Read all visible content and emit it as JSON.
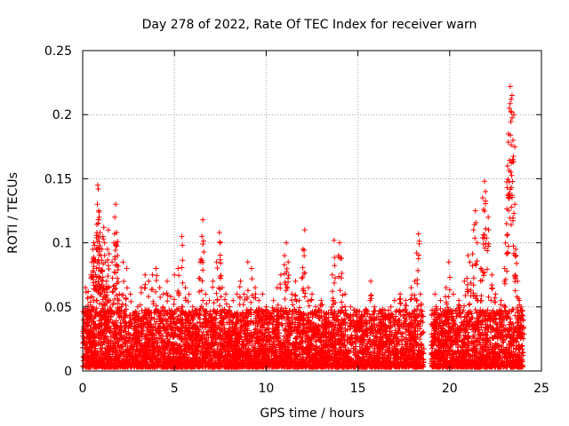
{
  "chart_data": {
    "type": "scatter",
    "title": "Day 278 of 2022, Rate Of TEC Index for receiver warn",
    "xlabel": "GPS time / hours",
    "ylabel": "ROTI / TECUs",
    "xlim": [
      0,
      25
    ],
    "ylim": [
      0,
      0.25
    ],
    "xticks": [
      "0",
      "5",
      "10",
      "15",
      "20",
      "25"
    ],
    "yticks": [
      "0",
      "0.05",
      "0.1",
      "0.15",
      "0.2",
      "0.25"
    ],
    "grid": true,
    "marker": "+",
    "color": "#ff0000",
    "data_gap_hours": [
      18.6,
      19.0
    ],
    "series": [
      {
        "values": [
          [
            0.15,
            0.065
          ],
          [
            0.3,
            0.062
          ],
          [
            0.35,
            0.048
          ],
          [
            0.45,
            0.058
          ],
          [
            0.5,
            0.085
          ],
          [
            0.55,
            0.095
          ],
          [
            0.6,
            0.1
          ],
          [
            0.65,
            0.098
          ],
          [
            0.7,
            0.075
          ],
          [
            0.75,
            0.08
          ],
          [
            0.8,
            0.13
          ],
          [
            0.82,
            0.145
          ],
          [
            0.85,
            0.142
          ],
          [
            0.88,
            0.125
          ],
          [
            0.9,
            0.12
          ],
          [
            0.95,
            0.108
          ],
          [
            1.0,
            0.09
          ],
          [
            1.05,
            0.095
          ],
          [
            1.1,
            0.105
          ],
          [
            1.15,
            0.112
          ],
          [
            1.2,
            0.1
          ],
          [
            1.25,
            0.085
          ],
          [
            1.3,
            0.07
          ],
          [
            1.35,
            0.095
          ],
          [
            1.4,
            0.11
          ],
          [
            1.45,
            0.065
          ],
          [
            1.5,
            0.055
          ],
          [
            1.6,
            0.085
          ],
          [
            1.7,
            0.1
          ],
          [
            1.75,
            0.12
          ],
          [
            1.8,
            0.13
          ],
          [
            1.85,
            0.108
          ],
          [
            1.9,
            0.09
          ],
          [
            2.0,
            0.06
          ],
          [
            2.1,
            0.05
          ],
          [
            2.2,
            0.085
          ],
          [
            2.4,
            0.08
          ],
          [
            2.6,
            0.06
          ],
          [
            2.8,
            0.045
          ],
          [
            3.0,
            0.05
          ],
          [
            3.2,
            0.065
          ],
          [
            3.4,
            0.075
          ],
          [
            3.6,
            0.07
          ],
          [
            3.8,
            0.075
          ],
          [
            4.0,
            0.08
          ],
          [
            4.2,
            0.065
          ],
          [
            4.4,
            0.06
          ],
          [
            4.6,
            0.07
          ],
          [
            4.8,
            0.058
          ],
          [
            5.0,
            0.075
          ],
          [
            5.2,
            0.08
          ],
          [
            5.4,
            0.105
          ],
          [
            5.6,
            0.065
          ],
          [
            5.8,
            0.06
          ],
          [
            6.0,
            0.05
          ],
          [
            6.2,
            0.045
          ],
          [
            6.4,
            0.085
          ],
          [
            6.5,
            0.105
          ],
          [
            6.55,
            0.118
          ],
          [
            6.7,
            0.06
          ],
          [
            6.9,
            0.055
          ],
          [
            7.1,
            0.07
          ],
          [
            7.3,
            0.085
          ],
          [
            7.45,
            0.108
          ],
          [
            7.5,
            0.1
          ],
          [
            7.6,
            0.065
          ],
          [
            7.8,
            0.06
          ],
          [
            8.0,
            0.05
          ],
          [
            8.2,
            0.055
          ],
          [
            8.4,
            0.06
          ],
          [
            8.6,
            0.07
          ],
          [
            8.8,
            0.06
          ],
          [
            9.0,
            0.085
          ],
          [
            9.2,
            0.08
          ],
          [
            9.4,
            0.065
          ],
          [
            9.6,
            0.055
          ],
          [
            9.8,
            0.06
          ],
          [
            10.0,
            0.05
          ],
          [
            10.2,
            0.045
          ],
          [
            10.4,
            0.055
          ],
          [
            10.6,
            0.065
          ],
          [
            10.8,
            0.075
          ],
          [
            11.0,
            0.09
          ],
          [
            11.1,
            0.1
          ],
          [
            11.2,
            0.085
          ],
          [
            11.4,
            0.06
          ],
          [
            11.6,
            0.07
          ],
          [
            11.8,
            0.055
          ],
          [
            12.0,
            0.095
          ],
          [
            12.1,
            0.11
          ],
          [
            12.3,
            0.065
          ],
          [
            12.5,
            0.06
          ],
          [
            12.7,
            0.05
          ],
          [
            13.0,
            0.055
          ],
          [
            13.3,
            0.045
          ],
          [
            13.6,
            0.075
          ],
          [
            13.7,
            0.102
          ],
          [
            14.0,
            0.1
          ],
          [
            14.1,
            0.088
          ],
          [
            14.3,
            0.06
          ],
          [
            14.6,
            0.05
          ],
          [
            14.9,
            0.045
          ],
          [
            15.2,
            0.04
          ],
          [
            15.5,
            0.045
          ],
          [
            15.7,
            0.07
          ],
          [
            15.9,
            0.05
          ],
          [
            16.2,
            0.035
          ],
          [
            16.5,
            0.04
          ],
          [
            16.8,
            0.05
          ],
          [
            17.0,
            0.055
          ],
          [
            17.3,
            0.06
          ],
          [
            17.6,
            0.055
          ],
          [
            17.9,
            0.065
          ],
          [
            18.1,
            0.07
          ],
          [
            18.2,
            0.092
          ],
          [
            18.3,
            0.107
          ],
          [
            18.4,
            0.06
          ],
          [
            19.2,
            0.06
          ],
          [
            19.5,
            0.055
          ],
          [
            19.8,
            0.065
          ],
          [
            19.95,
            0.085
          ],
          [
            20.2,
            0.06
          ],
          [
            20.5,
            0.055
          ],
          [
            20.8,
            0.07
          ],
          [
            21.0,
            0.09
          ],
          [
            21.1,
            0.085
          ],
          [
            21.3,
            0.11
          ],
          [
            21.4,
            0.125
          ],
          [
            21.5,
            0.1
          ],
          [
            21.7,
            0.08
          ],
          [
            21.8,
            0.135
          ],
          [
            21.9,
            0.148
          ],
          [
            21.95,
            0.14
          ],
          [
            22.1,
            0.12
          ],
          [
            22.3,
            0.075
          ],
          [
            22.5,
            0.06
          ],
          [
            22.8,
            0.055
          ],
          [
            23.0,
            0.08
          ],
          [
            23.1,
            0.115
          ],
          [
            23.15,
            0.16
          ],
          [
            23.2,
            0.185
          ],
          [
            23.25,
            0.205
          ],
          [
            23.3,
            0.222
          ],
          [
            23.35,
            0.212
          ],
          [
            23.4,
            0.215
          ],
          [
            23.45,
            0.18
          ],
          [
            23.5,
            0.2
          ],
          [
            23.55,
            0.13
          ],
          [
            23.6,
            0.095
          ],
          [
            23.7,
            0.07
          ],
          [
            23.8,
            0.055
          ],
          [
            23.9,
            0.05
          ],
          [
            24.0,
            0.04
          ]
        ]
      }
    ]
  }
}
